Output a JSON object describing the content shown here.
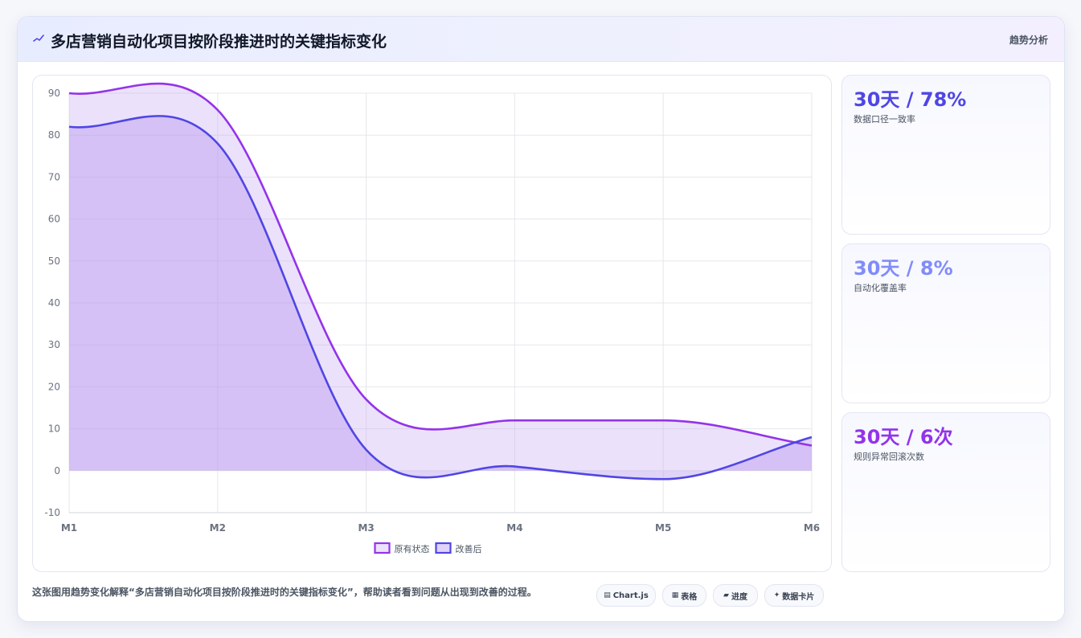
{
  "header": {
    "icon": "trend-line-icon",
    "title": "多店营销自动化项目按阶段推进时的关键指标变化",
    "tag": "趋势分析"
  },
  "kpis": [
    {
      "value": "30天 / 78%",
      "label": "数据口径一致率",
      "color": "#4f46e5"
    },
    {
      "value": "30天 / 8%",
      "label": "自动化覆盖率",
      "color": "#818cf8"
    },
    {
      "value": "30天 / 6次",
      "label": "规则异常回滚次数",
      "color": "#9333ea"
    }
  ],
  "footer": {
    "text": "这张图用趋势变化解释“多店营销自动化项目按阶段推进时的关键指标变化”，帮助读者看到问题从出现到改善的过程。",
    "chips": [
      {
        "icon": "chart-icon",
        "glyph": "▤",
        "label": "Chart.js"
      },
      {
        "icon": "table-icon",
        "glyph": "▦",
        "label": "表格"
      },
      {
        "icon": "progress-icon",
        "glyph": "▰",
        "label": "进度"
      },
      {
        "icon": "sparkle-icon",
        "glyph": "✦",
        "label": "数据卡片"
      }
    ]
  },
  "chart_data": {
    "type": "area",
    "categories": [
      "M1",
      "M2",
      "M3",
      "M4",
      "M5",
      "M6"
    ],
    "ylim": [
      -10,
      90
    ],
    "yticks": [
      90,
      80,
      70,
      60,
      50,
      40,
      30,
      20,
      10,
      0,
      -10
    ],
    "grid": true,
    "legend_position": "bottom",
    "series": [
      {
        "name": "原有状态",
        "values": [
          90,
          86,
          17,
          12,
          12,
          6
        ],
        "color": "#9333ea",
        "fill": "rgba(196,161,240,0.32)"
      },
      {
        "name": "改善后",
        "values": [
          82,
          78,
          5,
          1,
          -2,
          8
        ],
        "color": "#4f46e5",
        "fill": "rgba(180,150,238,0.42)"
      }
    ]
  }
}
